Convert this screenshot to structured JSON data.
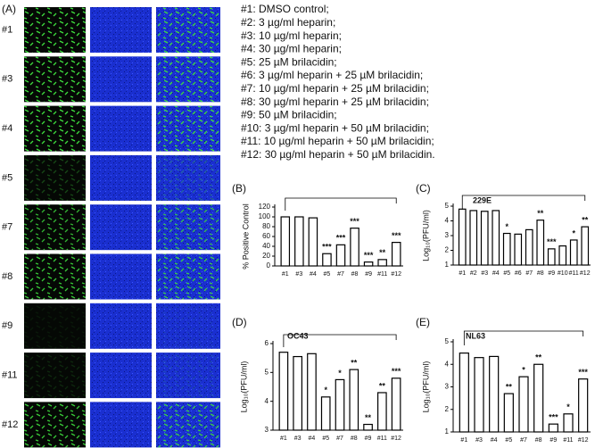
{
  "figure": {
    "panel_a": "(A)",
    "rows": [
      "#1",
      "#3",
      "#4",
      "#5",
      "#7",
      "#8",
      "#9",
      "#11",
      "#12"
    ],
    "legend": [
      "#1: DMSO control;",
      "#2: 3 µg/ml heparin;",
      "#3: 10 µg/ml heparin;",
      "#4: 30 µg/ml heparin;",
      "#5: 25 µM brilacidin;",
      "#6: 3 µg/ml heparin + 25 µM brilacidin;",
      "#7: 10 µg/ml heparin + 25 µM brilacidin;",
      "#8: 30 µg/ml heparin + 25 µM brilacidin;",
      "#9: 50 µM brilacidin;",
      "#10: 3 µg/ml heparin + 50 µM brilacidin;",
      "#11: 10 µg/ml heparin + 50 µM brilacidin;",
      "#12: 30 µg/ml heparin + 50 µM brilacidin."
    ]
  },
  "chart_data": [
    {
      "type": "bar",
      "panel": "(B)",
      "y_label": "% Positive Control",
      "categories": [
        "#1",
        "#3",
        "#4",
        "#5",
        "#7",
        "#8",
        "#9",
        "#11",
        "#12"
      ],
      "values": [
        100,
        100,
        98,
        25,
        43,
        77,
        8,
        13,
        48
      ],
      "annotations": [
        null,
        null,
        null,
        "***",
        "***",
        "***",
        "***",
        "**",
        "***"
      ],
      "ylim": [
        0,
        120
      ],
      "yticks": [
        0,
        20,
        40,
        60,
        80,
        100,
        120
      ],
      "color": "#ffffff",
      "edgecolor": "#000000"
    },
    {
      "type": "bar",
      "panel": "(C)",
      "title": "229E",
      "y_label": "Log₁₀(PFU/ml)",
      "categories": [
        "#1",
        "#2",
        "#3",
        "#4",
        "#5",
        "#6",
        "#7",
        "#8",
        "#9",
        "#10",
        "#11",
        "#12"
      ],
      "values": [
        4.8,
        4.7,
        4.65,
        4.7,
        3.15,
        3.1,
        3.4,
        4.05,
        2.1,
        2.3,
        2.7,
        3.6
      ],
      "annotations": [
        null,
        null,
        null,
        null,
        "*",
        null,
        null,
        "**",
        "***",
        null,
        "*",
        "**"
      ],
      "ylim": [
        1,
        5
      ],
      "yticks": [
        1,
        2,
        3,
        4,
        5
      ],
      "color": "#ffffff",
      "edgecolor": "#000000"
    },
    {
      "type": "bar",
      "panel": "(D)",
      "title": "OC43",
      "y_label": "Log₁₀(PFU/ml)",
      "categories": [
        "#1",
        "#3",
        "#4",
        "#5",
        "#7",
        "#8",
        "#9",
        "#11",
        "#12"
      ],
      "values": [
        5.7,
        5.55,
        5.65,
        4.15,
        4.75,
        5.1,
        3.2,
        4.3,
        4.8
      ],
      "annotations": [
        null,
        null,
        null,
        "*",
        "*",
        "**",
        "**",
        "**",
        "***"
      ],
      "ylim": [
        3,
        6
      ],
      "yticks": [
        3,
        4,
        5,
        6
      ],
      "color": "#ffffff",
      "edgecolor": "#000000"
    },
    {
      "type": "bar",
      "panel": "(E)",
      "title": "NL63",
      "y_label": "Log₁₀(PFU/ml)",
      "categories": [
        "#1",
        "#3",
        "#4",
        "#5",
        "#7",
        "#8",
        "#9",
        "#11",
        "#12"
      ],
      "values": [
        4.5,
        4.3,
        4.35,
        2.7,
        3.45,
        4.0,
        1.35,
        1.8,
        3.35
      ],
      "annotations": [
        null,
        null,
        null,
        "**",
        "*",
        "**",
        "***",
        "*",
        "***"
      ],
      "ylim": [
        1,
        5
      ],
      "yticks": [
        1,
        2,
        3,
        4,
        5
      ],
      "color": "#ffffff",
      "edgecolor": "#000000"
    }
  ]
}
